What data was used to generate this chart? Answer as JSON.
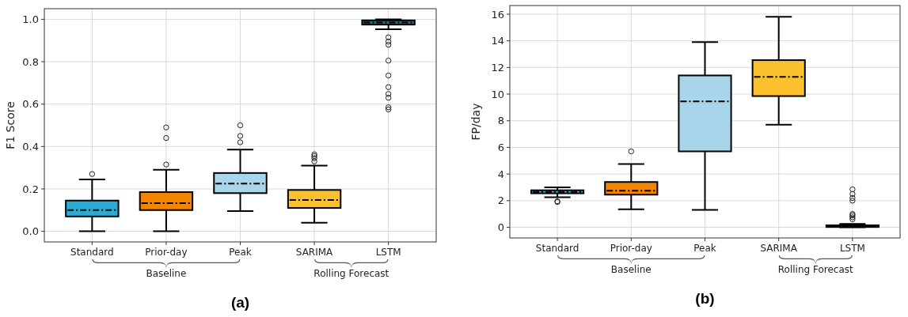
{
  "chart_data": [
    {
      "type": "box",
      "title": "(a)",
      "ylabel": "F1 Score",
      "categories": [
        "Standard",
        "Prior-day",
        "Peak",
        "SARIMA",
        "LSTM"
      ],
      "colors": [
        "#29abd4",
        "#f28500",
        "#a8d5ea",
        "#fbc02d",
        "#1f6f8b"
      ],
      "ylim": [
        -0.05,
        1.05
      ],
      "yticks": [
        {
          "value": 0,
          "label": "0.0"
        },
        {
          "value": 0.2,
          "label": "0.2"
        },
        {
          "value": 0.4,
          "label": "0.4"
        },
        {
          "value": 0.6,
          "label": "0.6"
        },
        {
          "value": 0.8,
          "label": "0.8"
        },
        {
          "value": 1,
          "label": "1.0"
        }
      ],
      "grid": true,
      "marker": "circle",
      "annotations": [
        "Baseline",
        "Rolling Forecast"
      ],
      "boxes": [
        {
          "low": 0,
          "q1": 0.07,
          "median": 0.1,
          "q3": 0.145,
          "high": 0.245,
          "outliers": [
            0.27
          ]
        },
        {
          "low": 0,
          "q1": 0.1,
          "median": 0.133,
          "q3": 0.185,
          "high": 0.29,
          "outliers": [
            0.315,
            0.44,
            0.49
          ]
        },
        {
          "low": 0.095,
          "q1": 0.18,
          "median": 0.225,
          "q3": 0.275,
          "high": 0.385,
          "outliers": [
            0.42,
            0.45,
            0.5
          ]
        },
        {
          "low": 0.04,
          "q1": 0.11,
          "median": 0.148,
          "q3": 0.195,
          "high": 0.31,
          "outliers": [
            0.33,
            0.345,
            0.355,
            0.363
          ]
        },
        {
          "low": 0.953,
          "q1": 0.975,
          "median": 0.985,
          "q3": 0.995,
          "high": 1.0,
          "outliers": [
            0.915,
            0.895,
            0.88,
            0.805,
            0.735,
            0.68,
            0.648,
            0.63,
            0.585,
            0.575
          ]
        }
      ]
    },
    {
      "type": "box",
      "title": "(b)",
      "ylabel": "FP/day",
      "categories": [
        "Standard",
        "Prior-day",
        "Peak",
        "SARIMA",
        "LSTM"
      ],
      "colors": [
        "#29abd4",
        "#f28500",
        "#a8d5ea",
        "#fbc02d",
        "#1f6f8b"
      ],
      "ylim": [
        -0.8,
        16.65
      ],
      "yticks": [
        0,
        2,
        4,
        6,
        8,
        10,
        12,
        14,
        16
      ],
      "grid": true,
      "marker": "circle",
      "annotations": [
        "Baseline",
        "Rolling Forecast"
      ],
      "boxes": [
        {
          "low": 2.25,
          "q1": 2.55,
          "median": 2.65,
          "q3": 2.78,
          "high": 3.0,
          "outliers": [
            1.9,
            1.95
          ]
        },
        {
          "low": 1.35,
          "q1": 2.45,
          "median": 2.75,
          "q3": 3.4,
          "high": 4.75,
          "outliers": [
            5.7
          ]
        },
        {
          "low": 1.3,
          "q1": 5.7,
          "median": 9.45,
          "q3": 11.4,
          "high": 13.9
        },
        {
          "low": 7.7,
          "q1": 9.85,
          "median": 11.3,
          "q3": 12.55,
          "high": 15.8
        },
        {
          "low": 0,
          "q1": 0.02,
          "median": 0.08,
          "q3": 0.15,
          "high": 0.25,
          "outliers": [
            0.6,
            0.75,
            0.9,
            1.0,
            2.0,
            2.2,
            2.5,
            2.85
          ]
        }
      ]
    }
  ]
}
